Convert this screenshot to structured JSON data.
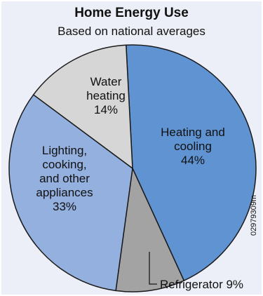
{
  "colors": {
    "background": "#eceff7",
    "heating_cooling": "#5f93d2",
    "refrigerator": "#a3a3a3",
    "lighting": "#93b0df",
    "water_heating": "#d6d6d6",
    "outline": "#1a1a1a"
  },
  "chart_data": {
    "type": "pie",
    "title": "Home Energy Use",
    "subtitle": "Based on national averages",
    "slices": [
      {
        "label": "Heating and cooling",
        "value": 44,
        "text": [
          "Heating and",
          "cooling",
          "44%"
        ]
      },
      {
        "label": "Refrigerator",
        "value": 9,
        "text": [
          "Refrigerator 9%"
        ]
      },
      {
        "label": "Lighting, cooking, and other appliances",
        "value": 33,
        "text": [
          "Lighting,",
          "cooking,",
          "and other",
          "appliances",
          "33%"
        ]
      },
      {
        "label": "Water heating",
        "value": 14,
        "text": [
          "Water",
          "heating",
          "14%"
        ]
      }
    ]
  },
  "credit": "02979309m"
}
